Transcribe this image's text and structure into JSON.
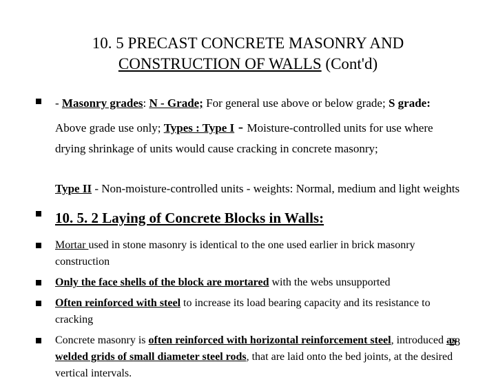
{
  "title": {
    "line1": "10. 5 PRECAST CONCRETE MASONRY AND",
    "line2_underlined": "CONSTRUCTION OF WALLS",
    "line2_suffix": " (Cont'd)"
  },
  "bullet1": {
    "dash": "- ",
    "masonry_grades": "Masonry grades",
    "colon": ": ",
    "n_grade": "N - Grade;",
    "n_grade_desc": " For general use above or below grade;  ",
    "s_grade_label": "S grade:",
    "s_grade_desc": " Above grade use only;  ",
    "types_label": "Types : Type I",
    "big_dash": "  -  ",
    "type1_desc": "Moisture-controlled units for use where drying shrinkage of units would cause cracking in concrete masonry;",
    "type2_label": "Type II",
    "type2_desc": " - Non-moisture-controlled units - weights: Normal, medium and light weights"
  },
  "bullet2": {
    "heading": "10. 5. 2 Laying of Concrete Blocks in Walls:"
  },
  "bullet3": {
    "lead": "Mortar ",
    "rest": "used in stone masonry is identical to the one used earlier in brick masonry construction"
  },
  "bullet4": {
    "lead": "Only the face shells of the block are mortared",
    "rest": " with the webs unsupported"
  },
  "bullet5": {
    "lead": "Often reinforced with steel",
    "rest": " to increase its load bearing capacity and its resistance to cracking"
  },
  "bullet6": {
    "pre": "Concrete masonry is ",
    "bold1": "often reinforced with horizontal reinforcement steel",
    "mid": ", introduced ",
    "bold2": "as welded grids of small diameter steel rods",
    "post": ", that are laid onto the bed joints, at the desired vertical intervals."
  },
  "page_number": "28"
}
